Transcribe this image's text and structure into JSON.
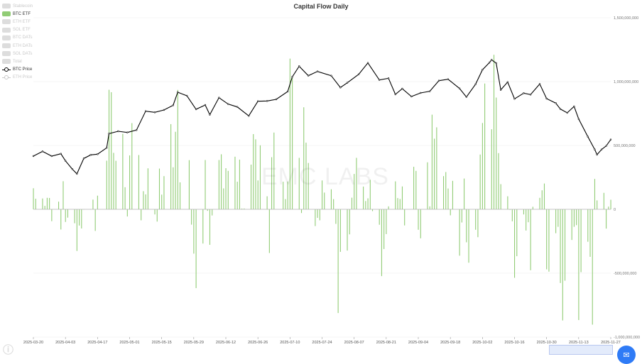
{
  "chart_data": {
    "type": "bar+line",
    "title": "Capital Flow Daily",
    "watermark": "EMC LABS",
    "x_start": "2025-03-20",
    "x_end": "2025-11-27",
    "x_ticks": [
      "2025-03-20",
      "2025-04-03",
      "2025-04-17",
      "2025-05-01",
      "2025-05-15",
      "2025-05-29",
      "2025-06-12",
      "2025-06-26",
      "2025-07-10",
      "2025-07-24",
      "2025-08-07",
      "2025-08-21",
      "2025-09-04",
      "2025-09-18",
      "2025-10-02",
      "2025-10-16",
      "2025-10-30",
      "2025-11-13",
      "2025-11-27"
    ],
    "y_ticks": [
      "1,500,000,000",
      "1,000,000,000",
      "500,000,000",
      "0",
      "-500,000,000",
      "-1,000,000,000"
    ],
    "ylim": [
      -1000000000,
      1500000000
    ],
    "legend": [
      {
        "name": "Stablecoin",
        "active": false,
        "kind": "bar"
      },
      {
        "name": "BTC ETF",
        "active": true,
        "kind": "bar"
      },
      {
        "name": "ETH ETF",
        "active": false,
        "kind": "bar"
      },
      {
        "name": "SOL ETF",
        "active": false,
        "kind": "bar"
      },
      {
        "name": "BTC DATs",
        "active": false,
        "kind": "bar"
      },
      {
        "name": "ETH DATs",
        "active": false,
        "kind": "bar"
      },
      {
        "name": "SOL DATs",
        "active": false,
        "kind": "bar"
      },
      {
        "name": "Total",
        "active": false,
        "kind": "bar"
      },
      {
        "name": "BTC Price",
        "active": true,
        "kind": "line"
      },
      {
        "name": "ETH Price",
        "active": false,
        "kind": "line"
      }
    ],
    "bar_series": {
      "name": "BTC ETF",
      "color": "#91cc75",
      "points": [
        [
          "2025-03-20",
          165000000
        ],
        [
          "2025-03-21",
          83000000
        ],
        [
          "2025-03-24",
          85000000
        ],
        [
          "2025-03-25",
          27000000
        ],
        [
          "2025-03-26",
          90000000
        ],
        [
          "2025-03-27",
          89000000
        ],
        [
          "2025-03-28",
          -93000000
        ],
        [
          "2025-03-31",
          60000000
        ],
        [
          "2025-04-01",
          -158000000
        ],
        [
          "2025-04-02",
          220000000
        ],
        [
          "2025-04-03",
          -99000000
        ],
        [
          "2025-04-04",
          -65000000
        ],
        [
          "2025-04-07",
          -109000000
        ],
        [
          "2025-04-08",
          -326000000
        ],
        [
          "2025-04-09",
          -127000000
        ],
        [
          "2025-04-10",
          -150000000
        ],
        [
          "2025-04-11",
          1000000
        ],
        [
          "2025-04-14",
          1500000
        ],
        [
          "2025-04-15",
          76000000
        ],
        [
          "2025-04-16",
          -169000000
        ],
        [
          "2025-04-17",
          107000000
        ],
        [
          "2025-04-21",
          381000000
        ],
        [
          "2025-04-22",
          936000000
        ],
        [
          "2025-04-23",
          917000000
        ],
        [
          "2025-04-24",
          442000000
        ],
        [
          "2025-04-25",
          380000000
        ],
        [
          "2025-04-28",
          591000000
        ],
        [
          "2025-04-29",
          173000000
        ],
        [
          "2025-04-30",
          -56000000
        ],
        [
          "2025-05-01",
          422000000
        ],
        [
          "2025-05-02",
          675000000
        ],
        [
          "2025-05-05",
          425000000
        ],
        [
          "2025-05-06",
          -86000000
        ],
        [
          "2025-05-07",
          142000000
        ],
        [
          "2025-05-08",
          117000000
        ],
        [
          "2025-05-09",
          321000000
        ],
        [
          "2025-05-12",
          -40000000
        ],
        [
          "2025-05-13",
          -96000000
        ],
        [
          "2025-05-14",
          319000000
        ],
        [
          "2025-05-15",
          115000000
        ],
        [
          "2025-05-16",
          260000000
        ],
        [
          "2025-05-19",
          667000000
        ],
        [
          "2025-05-20",
          329000000
        ],
        [
          "2025-05-21",
          607000000
        ],
        [
          "2025-05-22",
          935000000
        ],
        [
          "2025-05-23",
          211000000
        ],
        [
          "2025-05-27",
          385000000
        ],
        [
          "2025-05-28",
          -120000000
        ],
        [
          "2025-05-29",
          -347000000
        ],
        [
          "2025-05-30",
          -617000000
        ],
        [
          "2025-06-02",
          -268000000
        ],
        [
          "2025-06-03",
          386000000
        ],
        [
          "2025-06-04",
          -12000000
        ],
        [
          "2025-06-05",
          -278000000
        ],
        [
          "2025-06-06",
          -48000000
        ],
        [
          "2025-06-09",
          386000000
        ],
        [
          "2025-06-10",
          431000000
        ],
        [
          "2025-06-11",
          164000000
        ],
        [
          "2025-06-12",
          322000000
        ],
        [
          "2025-06-13",
          301000000
        ],
        [
          "2025-06-16",
          412000000
        ],
        [
          "2025-06-17",
          216000000
        ],
        [
          "2025-06-18",
          389000000
        ],
        [
          "2025-06-19",
          6000000
        ],
        [
          "2025-06-20",
          6500000
        ],
        [
          "2025-06-23",
          350000000
        ],
        [
          "2025-06-24",
          589000000
        ],
        [
          "2025-06-25",
          548000000
        ],
        [
          "2025-06-26",
          226000000
        ],
        [
          "2025-06-27",
          501000000
        ],
        [
          "2025-06-30",
          102000000
        ],
        [
          "2025-07-01",
          -342000000
        ],
        [
          "2025-07-02",
          408000000
        ],
        [
          "2025-07-03",
          601000000
        ],
        [
          "2025-07-07",
          216000000
        ],
        [
          "2025-07-08",
          80000000
        ],
        [
          "2025-07-09",
          218000000
        ],
        [
          "2025-07-10",
          1180000000
        ],
        [
          "2025-07-11",
          1030000000
        ],
        [
          "2025-07-14",
          403000000
        ],
        [
          "2025-07-15",
          -29000000
        ],
        [
          "2025-07-16",
          799000000
        ],
        [
          "2025-07-17",
          522000000
        ],
        [
          "2025-07-18",
          363000000
        ],
        [
          "2025-07-21",
          -131000000
        ],
        [
          "2025-07-22",
          -67000000
        ],
        [
          "2025-07-23",
          -86000000
        ],
        [
          "2025-07-24",
          226000000
        ],
        [
          "2025-07-25",
          131000000
        ],
        [
          "2025-07-28",
          157000000
        ],
        [
          "2025-07-29",
          80000000
        ],
        [
          "2025-07-30",
          -114000000
        ],
        [
          "2025-07-31",
          -812000000
        ],
        [
          "2025-08-01",
          -333000000
        ],
        [
          "2025-08-04",
          -323000000
        ],
        [
          "2025-08-05",
          -196000000
        ],
        [
          "2025-08-06",
          91000000
        ],
        [
          "2025-08-07",
          277000000
        ],
        [
          "2025-08-08",
          403000000
        ],
        [
          "2025-08-11",
          178000000
        ],
        [
          "2025-08-12",
          65000000
        ],
        [
          "2025-08-13",
          86000000
        ],
        [
          "2025-08-14",
          231000000
        ],
        [
          "2025-08-15",
          -14000000
        ],
        [
          "2025-08-18",
          -121000000
        ],
        [
          "2025-08-19",
          -523000000
        ],
        [
          "2025-08-20",
          -311000000
        ],
        [
          "2025-08-21",
          -194000000
        ],
        [
          "2025-08-22",
          23000000
        ],
        [
          "2025-08-25",
          219000000
        ],
        [
          "2025-08-26",
          88000000
        ],
        [
          "2025-08-27",
          81000000
        ],
        [
          "2025-08-28",
          179000000
        ],
        [
          "2025-08-29",
          -126000000
        ],
        [
          "2025-09-02",
          333000000
        ],
        [
          "2025-09-03",
          301000000
        ],
        [
          "2025-09-04",
          -160000000
        ],
        [
          "2025-09-05",
          -227000000
        ],
        [
          "2025-09-08",
          368000000
        ],
        [
          "2025-09-09",
          23000000
        ],
        [
          "2025-09-10",
          741000000
        ],
        [
          "2025-09-11",
          553000000
        ],
        [
          "2025-09-12",
          642000000
        ],
        [
          "2025-09-15",
          260000000
        ],
        [
          "2025-09-16",
          292000000
        ],
        [
          "2025-09-17",
          163000000
        ],
        [
          "2025-09-18",
          -47000000
        ],
        [
          "2025-09-19",
          223000000
        ],
        [
          "2025-09-22",
          -363000000
        ],
        [
          "2025-09-23",
          -103000000
        ],
        [
          "2025-09-24",
          241000000
        ],
        [
          "2025-09-25",
          -258000000
        ],
        [
          "2025-09-26",
          -418000000
        ],
        [
          "2025-09-29",
          -160000000
        ],
        [
          "2025-09-30",
          -218000000
        ],
        [
          "2025-10-01",
          429000000
        ],
        [
          "2025-10-02",
          676000000
        ],
        [
          "2025-10-03",
          985000000
        ],
        [
          "2025-10-06",
          627000000
        ],
        [
          "2025-10-07",
          1210000000
        ],
        [
          "2025-10-08",
          875000000
        ],
        [
          "2025-10-09",
          440000000
        ],
        [
          "2025-10-10",
          197000000
        ],
        [
          "2025-10-13",
          102000000
        ],
        [
          "2025-10-14",
          -4000000
        ],
        [
          "2025-10-15",
          -94000000
        ],
        [
          "2025-10-16",
          -536000000
        ],
        [
          "2025-10-17",
          -367000000
        ],
        [
          "2025-10-20",
          -40000000
        ],
        [
          "2025-10-21",
          -166000000
        ],
        [
          "2025-10-22",
          -101000000
        ],
        [
          "2025-10-23",
          -477000000
        ],
        [
          "2025-10-24",
          20000000
        ],
        [
          "2025-10-27",
          90000000
        ],
        [
          "2025-10-28",
          149000000
        ],
        [
          "2025-10-29",
          202000000
        ],
        [
          "2025-10-30",
          -470000000
        ],
        [
          "2025-10-31",
          -488000000
        ],
        [
          "2025-11-03",
          -187000000
        ],
        [
          "2025-11-04",
          -137000000
        ],
        [
          "2025-11-05",
          -577000000
        ],
        [
          "2025-11-06",
          -870000000
        ],
        [
          "2025-11-07",
          -559000000
        ],
        [
          "2025-11-10",
          -240000000
        ],
        [
          "2025-11-11",
          -137000000
        ],
        [
          "2025-11-12",
          -124000000
        ],
        [
          "2025-11-13",
          -867000000
        ],
        [
          "2025-11-14",
          -492000000
        ],
        [
          "2025-11-17",
          -254000000
        ],
        [
          "2025-11-18",
          -372000000
        ],
        [
          "2025-11-19",
          -903000000
        ],
        [
          "2025-11-20",
          238000000
        ],
        [
          "2025-11-21",
          70000000
        ],
        [
          "2025-11-24",
          129000000
        ],
        [
          "2025-11-25",
          -151000000
        ],
        [
          "2025-11-26",
          21000000
        ],
        [
          "2025-11-27",
          75000000
        ]
      ]
    },
    "line_series": {
      "name": "BTC Price",
      "color": "#000000",
      "points": [
        [
          "2025-03-20",
          84000
        ],
        [
          "2025-03-24",
          86000
        ],
        [
          "2025-03-28",
          84000
        ],
        [
          "2025-04-01",
          85000
        ],
        [
          "2025-04-03",
          82000
        ],
        [
          "2025-04-06",
          78500
        ],
        [
          "2025-04-08",
          76500
        ],
        [
          "2025-04-11",
          83000
        ],
        [
          "2025-04-14",
          84500
        ],
        [
          "2025-04-17",
          84800
        ],
        [
          "2025-04-21",
          87500
        ],
        [
          "2025-04-22",
          93500
        ],
        [
          "2025-04-26",
          94500
        ],
        [
          "2025-04-30",
          94000
        ],
        [
          "2025-05-04",
          95000
        ],
        [
          "2025-05-08",
          103000
        ],
        [
          "2025-05-12",
          102500
        ],
        [
          "2025-05-16",
          103500
        ],
        [
          "2025-05-20",
          105500
        ],
        [
          "2025-05-22",
          111000
        ],
        [
          "2025-05-26",
          109500
        ],
        [
          "2025-05-30",
          103800
        ],
        [
          "2025-06-03",
          105600
        ],
        [
          "2025-06-05",
          101500
        ],
        [
          "2025-06-09",
          108700
        ],
        [
          "2025-06-13",
          106000
        ],
        [
          "2025-06-17",
          104800
        ],
        [
          "2025-06-22",
          101000
        ],
        [
          "2025-06-26",
          107200
        ],
        [
          "2025-06-30",
          107300
        ],
        [
          "2025-07-04",
          108000
        ],
        [
          "2025-07-09",
          111300
        ],
        [
          "2025-07-11",
          117500
        ],
        [
          "2025-07-14",
          122000
        ],
        [
          "2025-07-18",
          118000
        ],
        [
          "2025-07-22",
          119800
        ],
        [
          "2025-07-28",
          118000
        ],
        [
          "2025-08-01",
          113000
        ],
        [
          "2025-08-04",
          115000
        ],
        [
          "2025-08-09",
          118600
        ],
        [
          "2025-08-13",
          123400
        ],
        [
          "2025-08-18",
          116200
        ],
        [
          "2025-08-22",
          116900
        ],
        [
          "2025-08-25",
          110100
        ],
        [
          "2025-08-28",
          112500
        ],
        [
          "2025-09-01",
          109200
        ],
        [
          "2025-09-05",
          110700
        ],
        [
          "2025-09-09",
          111400
        ],
        [
          "2025-09-13",
          115900
        ],
        [
          "2025-09-17",
          116500
        ],
        [
          "2025-09-22",
          112600
        ],
        [
          "2025-09-25",
          109000
        ],
        [
          "2025-09-29",
          114400
        ],
        [
          "2025-10-02",
          120500
        ],
        [
          "2025-10-05",
          123500
        ],
        [
          "2025-10-06",
          124700
        ],
        [
          "2025-10-08",
          123300
        ],
        [
          "2025-10-10",
          112000
        ],
        [
          "2025-10-13",
          115300
        ],
        [
          "2025-10-16",
          108200
        ],
        [
          "2025-10-20",
          110600
        ],
        [
          "2025-10-23",
          110000
        ],
        [
          "2025-10-27",
          114500
        ],
        [
          "2025-10-30",
          108300
        ],
        [
          "2025-11-03",
          106400
        ],
        [
          "2025-11-05",
          103900
        ],
        [
          "2025-11-08",
          102300
        ],
        [
          "2025-11-11",
          105000
        ],
        [
          "2025-11-13",
          99700
        ],
        [
          "2025-11-17",
          92200
        ],
        [
          "2025-11-20",
          86800
        ],
        [
          "2025-11-21",
          84600
        ],
        [
          "2025-11-23",
          86800
        ],
        [
          "2025-11-25",
          88300
        ],
        [
          "2025-11-27",
          91000
        ]
      ]
    }
  }
}
